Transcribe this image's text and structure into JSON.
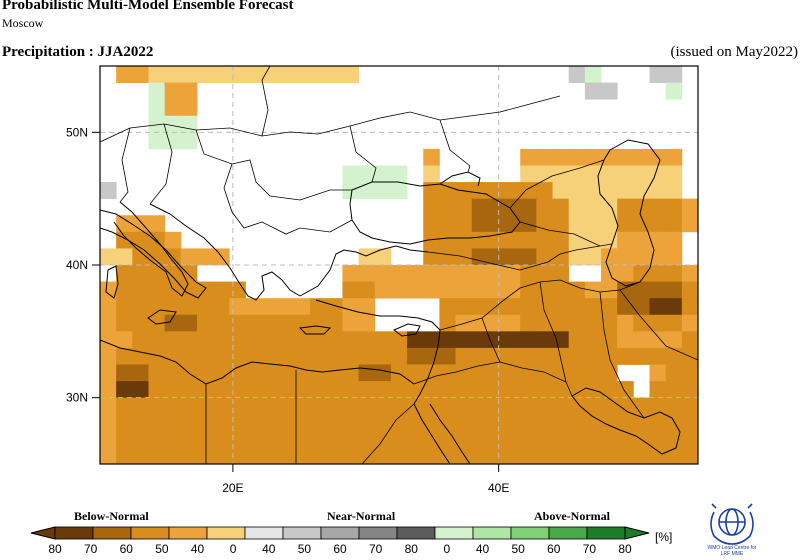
{
  "header": {
    "title": "Probabilistic Multi-Model Ensemble Forecast",
    "subtitle": "Moscow",
    "variable": "Precipitation : JJA2022",
    "issued": "(issued on May2022)"
  },
  "map": {
    "lat_labels": [
      "50N",
      "40N",
      "30N"
    ],
    "lon_labels": [
      "20E",
      "40E"
    ],
    "lat_values": [
      50,
      40,
      30
    ],
    "lon_values": [
      20,
      40
    ],
    "lon_range": [
      10,
      55
    ],
    "lat_range": [
      25,
      55
    ],
    "cell_deg": 2.5,
    "cells": [
      "wBBAAAAAAAAAAAAAwwwwwwwwwwwwwhgwwwhhw",
      "wwwgBBwwwwwwwwwwwwwwwwwwwwwwwwhhwwwgw",
      "wwwgBBwwwwwwwwwwwwwwwwwwwwwwwwwwwwwww",
      "wwwgggwwwwwwwwwwwwwwwwwwwwwwwwwwwwwww",
      "wwwgggwwwwwwwwwwwwwwwwwwwwwwwwwwwwwww",
      "wwwwwwwwwwwwwwwwwwwwBwwwwwBBBBBBBBBBw",
      "wwwwwwwwwwwwwwwggggwAwwwwwAAAAAAAAAAw",
      "hwwwwwwwwwwwwwwggggwCCCCCCCCAAAAAAAAw",
      "wwwwwwwwwwwwwwwwwwwwCCCDDDDCCAAACCCCB",
      "wBBBwwwwwwwwwwwwwwwwCCCDDDDCCAAACCCCB",
      "wCCCBwwwwwwwwwwwwwwwCCCCCCCCCAAABBBBw",
      "AACCCBBBwwwwwwwwAAwwCCCDDDDCCAABBBBBw",
      "wCCCCCwwwwwwwwwBBBBBBBBBBBCCCwwBBCCCB",
      "BCCCCCCCCwwwwwwCCBBBBBBBBBCCCCBBDDDDC",
      "BCCCCCCCBBBBBCCBBwwwwCCCCCCCCCCCDDEEC",
      "BCCCDDCCCCCCCCCBBwwwwCBBBBCCCCCCBCCCB",
      "BBCCCCCCCCCCCCCCCCCEEEEEEEEEECCCBBBBC",
      "BCCCCCCCCCCCCCCCCCCDDDCCCCCCCCCCCCCCC",
      "BDDCCCCCCCCCCCCCDDCCCCCCCCCCCCCCwwBCC",
      "BEECCCCCCCCCCCCCCCCCCCCCCCCCCCCCCwCCC",
      "BCCCCCCCCCCCCCCCCCCCCCCCCCCCCCCCCCCCC",
      "BCCCCCCCCCCCCCCCCCCCCCCCCCCCCCCCCCCCC",
      "BCCCCCCCCCCCCCCCCCCCCCCCCCCCCCCCCCCCC",
      "BCCCCCCCCCCCCCCCCCCCCCCCCCCCCCCCCCCCC"
    ]
  },
  "legend": {
    "categories": [
      "Below-Normal",
      "Near-Normal",
      "Above-Normal"
    ],
    "ticks": [
      "80",
      "70",
      "60",
      "50",
      "40",
      "0",
      "40",
      "50",
      "60",
      "70",
      "80",
      "0",
      "40",
      "50",
      "60",
      "70",
      "80"
    ],
    "unit": "[%]",
    "colors": {
      "below": [
        "#6b3a0a",
        "#a8660f",
        "#d98d1c",
        "#eca43a",
        "#f7d07a"
      ],
      "near": [
        "#e6e6e6",
        "#c8c8c8",
        "#a7a7a7",
        "#858585",
        "#5c5c5c"
      ],
      "above": [
        "#d4f2cd",
        "#aee6a3",
        "#7fd076",
        "#48a84a",
        "#1f7a2a"
      ]
    }
  },
  "logo": {
    "text_line1": "WMO Lead Centre for",
    "text_line2": "LRF MME"
  }
}
